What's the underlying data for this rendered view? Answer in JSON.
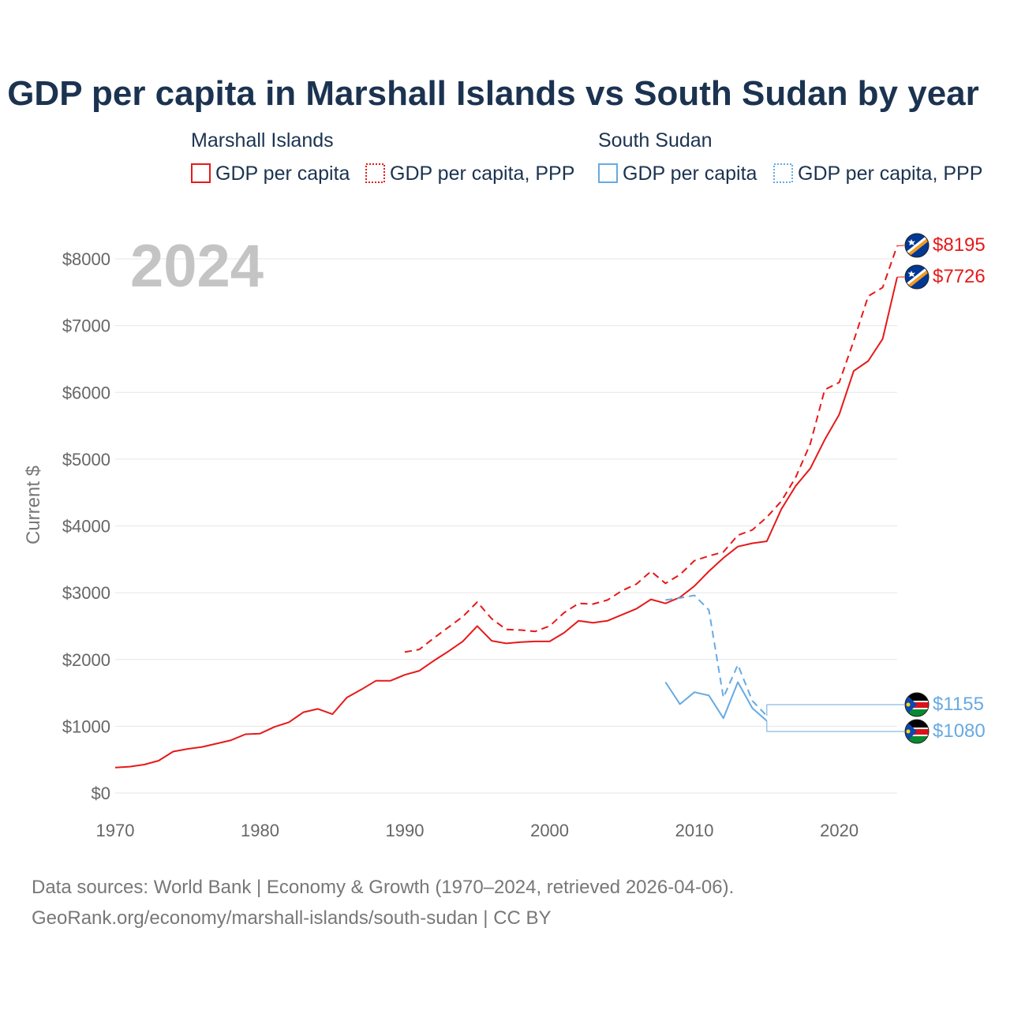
{
  "colors": {
    "marshall": "#e61919",
    "sudan": "#66aae3",
    "grid": "#e6e6e6",
    "title": "#1b3350"
  },
  "chart_data": {
    "type": "line",
    "title": "GDP per capita in Marshall Islands vs South Sudan by year",
    "ylabel": "Current $",
    "year_watermark": "2024",
    "xlim": [
      1970,
      2024
    ],
    "ylim": [
      0,
      8000
    ],
    "x_ticks": [
      1970,
      1980,
      1990,
      2000,
      2010,
      2020
    ],
    "x_tick_labels": [
      "1970",
      "1980",
      "1990",
      "2000",
      "2010",
      "2020"
    ],
    "y_ticks": [
      0,
      1000,
      2000,
      3000,
      4000,
      5000,
      6000,
      7000,
      8000
    ],
    "y_tick_labels": [
      "$0",
      "$1000",
      "$2000",
      "$3000",
      "$4000",
      "$5000",
      "$6000",
      "$7000",
      "$8000"
    ],
    "legend": {
      "groups": [
        {
          "name": "Marshall Islands",
          "items": [
            "GDP per capita",
            "GDP per capita, PPP"
          ]
        },
        {
          "name": "South Sudan",
          "items": [
            "GDP per capita",
            "GDP per capita, PPP"
          ]
        }
      ]
    },
    "series": [
      {
        "name": "Marshall Islands GDP per capita",
        "country": "marshall",
        "style": "solid",
        "end_label": "$7726",
        "x": [
          1970,
          1971,
          1972,
          1973,
          1974,
          1975,
          1976,
          1977,
          1978,
          1979,
          1980,
          1981,
          1982,
          1983,
          1984,
          1985,
          1986,
          1987,
          1988,
          1989,
          1990,
          1991,
          1992,
          1993,
          1994,
          1995,
          1996,
          1997,
          1998,
          1999,
          2000,
          2001,
          2002,
          2003,
          2004,
          2005,
          2006,
          2007,
          2008,
          2009,
          2010,
          2011,
          2012,
          2013,
          2014,
          2015,
          2016,
          2017,
          2018,
          2019,
          2020,
          2021,
          2022,
          2023,
          2024
        ],
        "values": [
          380,
          395,
          425,
          485,
          620,
          660,
          690,
          740,
          790,
          880,
          890,
          990,
          1060,
          1210,
          1260,
          1180,
          1430,
          1550,
          1680,
          1680,
          1770,
          1830,
          1980,
          2120,
          2270,
          2500,
          2280,
          2240,
          2260,
          2270,
          2270,
          2400,
          2580,
          2550,
          2580,
          2670,
          2760,
          2900,
          2840,
          2930,
          3100,
          3320,
          3520,
          3690,
          3740,
          3770,
          4250,
          4600,
          4860,
          5290,
          5670,
          6320,
          6470,
          6800,
          7726
        ]
      },
      {
        "name": "Marshall Islands GDP per capita, PPP",
        "country": "marshall",
        "style": "dashed",
        "end_label": "$8195",
        "x": [
          1990,
          1991,
          1992,
          1993,
          1994,
          1995,
          1996,
          1997,
          1998,
          1999,
          2000,
          2001,
          2002,
          2003,
          2004,
          2005,
          2006,
          2007,
          2008,
          2009,
          2010,
          2011,
          2012,
          2013,
          2014,
          2015,
          2016,
          2017,
          2018,
          2019,
          2020,
          2021,
          2022,
          2023,
          2024
        ],
        "values": [
          2110,
          2150,
          2320,
          2480,
          2640,
          2860,
          2610,
          2450,
          2440,
          2420,
          2500,
          2700,
          2840,
          2830,
          2890,
          3030,
          3130,
          3320,
          3140,
          3270,
          3480,
          3550,
          3610,
          3860,
          3940,
          4130,
          4370,
          4730,
          5230,
          6040,
          6150,
          6770,
          7440,
          7570,
          8195
        ]
      },
      {
        "name": "South Sudan GDP per capita",
        "country": "sudan",
        "style": "solid",
        "end_label": "$1080",
        "x": [
          2008,
          2009,
          2010,
          2011,
          2012,
          2013,
          2014,
          2015
        ],
        "values": [
          1660,
          1330,
          1510,
          1460,
          1120,
          1660,
          1270,
          1080
        ]
      },
      {
        "name": "South Sudan GDP per capita, PPP",
        "country": "sudan",
        "style": "dashed",
        "end_label": "$1155",
        "x": [
          2008,
          2009,
          2010,
          2011,
          2012,
          2013,
          2014,
          2015
        ],
        "values": [
          2890,
          2920,
          2960,
          2740,
          1430,
          1920,
          1380,
          1155
        ]
      }
    ]
  },
  "sources": {
    "line1": "Data sources: World Bank | Economy & Growth (1970–2024, retrieved 2026-04-06).",
    "line2": "GeoRank.org/economy/marshall-islands/south-sudan | CC BY"
  },
  "flags": {
    "marshall": "marshall-islands-flag-icon",
    "sudan": "south-sudan-flag-icon"
  }
}
